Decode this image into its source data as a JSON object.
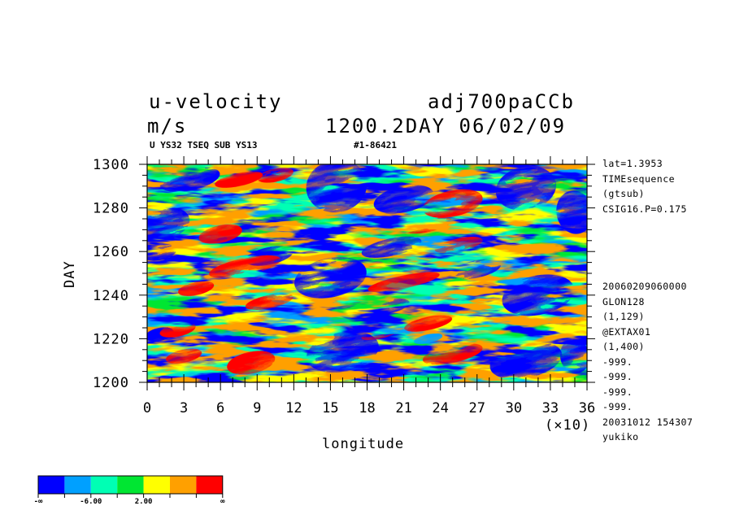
{
  "header": {
    "variable": "u-velocity",
    "experiment": "adj700paCCb",
    "units": "m/s",
    "time_stamp": "1200.2DAY 06/02/09",
    "subtitle_left": "U YS32 TSEQ SUB YS13",
    "subtitle_right": "#1-86421"
  },
  "side_info": {
    "top": [
      "lat=1.3953",
      "TIMEsequence",
      "(gtsub)",
      "CSIG16.P=0.175"
    ],
    "bottom": [
      "20060209060000",
      "GLON128",
      "(1,129)",
      "@EXTAX01",
      "(1,400)",
      "-999.",
      "-999.",
      "-999.",
      "-999.",
      "20031012 154307",
      "yukiko"
    ]
  },
  "colors": {
    "levels": [
      "#0000ff",
      "#00a0ff",
      "#00ffb4",
      "#00e632",
      "#ffff00",
      "#ffa000",
      "#ff0000"
    ]
  },
  "chart_data": {
    "type": "heatmap",
    "xlabel": "longitude",
    "ylabel": "DAY",
    "x_multiplier": "(×10)",
    "xlim": [
      0,
      36
    ],
    "ylim": [
      1200,
      1300
    ],
    "xticks": [
      "0",
      "3",
      "6",
      "9",
      "12",
      "15",
      "18",
      "21",
      "24",
      "27",
      "30",
      "33",
      "36"
    ],
    "yticks": [
      "1200",
      "1220",
      "1240",
      "1260",
      "1280",
      "1300"
    ],
    "colorbar_labels": [
      "-∞",
      "-6.00",
      "2.00",
      "∞"
    ],
    "grid": false,
    "patches": [
      {
        "x": 3.5,
        "y": 1293,
        "rx": 2.5,
        "ry": 5,
        "level": 0
      },
      {
        "x": 15.5,
        "y": 1290,
        "rx": 2.5,
        "ry": 12,
        "level": 0
      },
      {
        "x": 21,
        "y": 1284,
        "rx": 2.5,
        "ry": 6,
        "level": 0
      },
      {
        "x": 31,
        "y": 1289,
        "rx": 2.5,
        "ry": 10,
        "level": 0
      },
      {
        "x": 35,
        "y": 1278,
        "rx": 1.5,
        "ry": 10,
        "level": 0
      },
      {
        "x": 1.5,
        "y": 1273,
        "rx": 2,
        "ry": 7,
        "level": 0
      },
      {
        "x": 15,
        "y": 1248,
        "rx": 3,
        "ry": 9,
        "level": 0
      },
      {
        "x": 20,
        "y": 1262,
        "rx": 2.5,
        "ry": 4,
        "level": 0
      },
      {
        "x": 10,
        "y": 1258,
        "rx": 2,
        "ry": 4,
        "level": 0
      },
      {
        "x": 1,
        "y": 1260,
        "rx": 1.5,
        "ry": 4,
        "level": 0
      },
      {
        "x": 32,
        "y": 1240,
        "rx": 3,
        "ry": 9,
        "level": 0
      },
      {
        "x": 27,
        "y": 1252,
        "rx": 2,
        "ry": 4,
        "level": 0
      },
      {
        "x": 16,
        "y": 1214,
        "rx": 3,
        "ry": 9,
        "level": 0
      },
      {
        "x": 31,
        "y": 1210,
        "rx": 3,
        "ry": 8,
        "level": 0
      },
      {
        "x": 35,
        "y": 1212,
        "rx": 1.2,
        "ry": 8,
        "level": 0
      },
      {
        "x": 20,
        "y": 1235,
        "rx": 1.5,
        "ry": 3,
        "level": 0
      },
      {
        "x": 1,
        "y": 1222,
        "rx": 1.2,
        "ry": 3,
        "level": 0
      },
      {
        "x": 23,
        "y": 1220,
        "rx": 1.2,
        "ry": 2,
        "level": 1
      },
      {
        "x": 7.5,
        "y": 1293,
        "rx": 2,
        "ry": 3,
        "level": 6
      },
      {
        "x": 10.5,
        "y": 1295,
        "rx": 1.5,
        "ry": 3,
        "level": 6
      },
      {
        "x": 6,
        "y": 1268,
        "rx": 1.8,
        "ry": 4,
        "level": 6
      },
      {
        "x": 25,
        "y": 1282,
        "rx": 2.5,
        "ry": 6,
        "level": 6
      },
      {
        "x": 23,
        "y": 1272,
        "rx": 2,
        "ry": 3,
        "level": 6
      },
      {
        "x": 8,
        "y": 1253,
        "rx": 3,
        "ry": 4,
        "level": 6
      },
      {
        "x": 25.5,
        "y": 1263,
        "rx": 2,
        "ry": 3,
        "level": 6
      },
      {
        "x": 4,
        "y": 1243,
        "rx": 1.5,
        "ry": 3,
        "level": 6
      },
      {
        "x": 21,
        "y": 1246,
        "rx": 3,
        "ry": 3,
        "level": 6
      },
      {
        "x": 10,
        "y": 1237,
        "rx": 2,
        "ry": 3,
        "level": 6
      },
      {
        "x": 23,
        "y": 1227,
        "rx": 2,
        "ry": 3,
        "level": 6
      },
      {
        "x": 2.5,
        "y": 1224,
        "rx": 1.5,
        "ry": 3,
        "level": 6
      },
      {
        "x": 8.5,
        "y": 1209,
        "rx": 2,
        "ry": 5,
        "level": 6
      },
      {
        "x": 25,
        "y": 1213,
        "rx": 2.5,
        "ry": 4,
        "level": 6
      },
      {
        "x": 3,
        "y": 1212,
        "rx": 1.5,
        "ry": 3,
        "level": 6
      },
      {
        "x": 19,
        "y": 1222,
        "rx": 1.5,
        "ry": 2,
        "level": 6
      }
    ]
  }
}
